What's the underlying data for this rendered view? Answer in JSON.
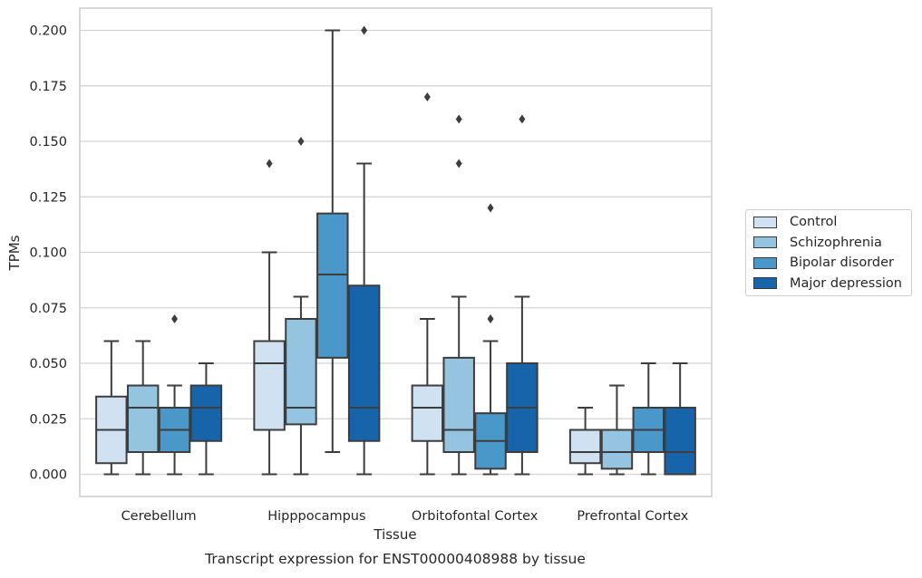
{
  "chart_data": {
    "type": "box",
    "title": "Transcript expression for ENST00000408988 by tissue",
    "xlabel": "Tissue",
    "ylabel": "TPMs",
    "ylim": [
      -0.01,
      0.21
    ],
    "yticks": [
      "0.000",
      "0.025",
      "0.050",
      "0.075",
      "0.100",
      "0.125",
      "0.150",
      "0.175",
      "0.200"
    ],
    "grid": "horizontal",
    "legend_position": "right",
    "categories": [
      "Cerebellum",
      "Hipppocampus",
      "Orbitofontal Cortex",
      "Prefrontal Cortex"
    ],
    "series": [
      {
        "name": "Control",
        "color": "#d0e1f2",
        "boxes": [
          {
            "min": 0.0,
            "q1": 0.005,
            "median": 0.02,
            "q3": 0.035,
            "max": 0.06,
            "outliers": []
          },
          {
            "min": 0.0,
            "q1": 0.02,
            "median": 0.05,
            "q3": 0.06,
            "max": 0.1,
            "outliers": [
              0.14
            ]
          },
          {
            "min": 0.0,
            "q1": 0.015,
            "median": 0.03,
            "q3": 0.04,
            "max": 0.07,
            "outliers": [
              0.17
            ]
          },
          {
            "min": 0.0,
            "q1": 0.005,
            "median": 0.01,
            "q3": 0.02,
            "max": 0.03,
            "outliers": []
          }
        ]
      },
      {
        "name": "Schizophrenia",
        "color": "#94c4df",
        "boxes": [
          {
            "min": 0.0,
            "q1": 0.01,
            "median": 0.03,
            "q3": 0.04,
            "max": 0.06,
            "outliers": []
          },
          {
            "min": 0.0,
            "q1": 0.0225,
            "median": 0.03,
            "q3": 0.07,
            "max": 0.08,
            "outliers": [
              0.15
            ]
          },
          {
            "min": 0.0,
            "q1": 0.01,
            "median": 0.02,
            "q3": 0.0525,
            "max": 0.08,
            "outliers": [
              0.14,
              0.16
            ]
          },
          {
            "min": 0.0,
            "q1": 0.0025,
            "median": 0.01,
            "q3": 0.02,
            "max": 0.04,
            "outliers": []
          }
        ]
      },
      {
        "name": "Bipolar disorder",
        "color": "#4a98c9",
        "boxes": [
          {
            "min": 0.0,
            "q1": 0.01,
            "median": 0.02,
            "q3": 0.03,
            "max": 0.04,
            "outliers": [
              0.07
            ]
          },
          {
            "min": 0.01,
            "q1": 0.0525,
            "median": 0.09,
            "q3": 0.1175,
            "max": 0.2,
            "outliers": []
          },
          {
            "min": 0.0,
            "q1": 0.0025,
            "median": 0.015,
            "q3": 0.0275,
            "max": 0.06,
            "outliers": [
              0.07,
              0.12
            ]
          },
          {
            "min": 0.0,
            "q1": 0.01,
            "median": 0.02,
            "q3": 0.03,
            "max": 0.05,
            "outliers": []
          }
        ]
      },
      {
        "name": "Major depression",
        "color": "#1764ab",
        "boxes": [
          {
            "min": 0.0,
            "q1": 0.015,
            "median": 0.03,
            "q3": 0.04,
            "max": 0.05,
            "outliers": []
          },
          {
            "min": 0.0,
            "q1": 0.015,
            "median": 0.03,
            "q3": 0.085,
            "max": 0.14,
            "outliers": [
              0.2
            ]
          },
          {
            "min": 0.0,
            "q1": 0.01,
            "median": 0.03,
            "q3": 0.05,
            "max": 0.08,
            "outliers": [
              0.16
            ]
          },
          {
            "min": 0.0,
            "q1": 0.0,
            "median": 0.01,
            "q3": 0.03,
            "max": 0.05,
            "outliers": []
          }
        ]
      }
    ]
  }
}
